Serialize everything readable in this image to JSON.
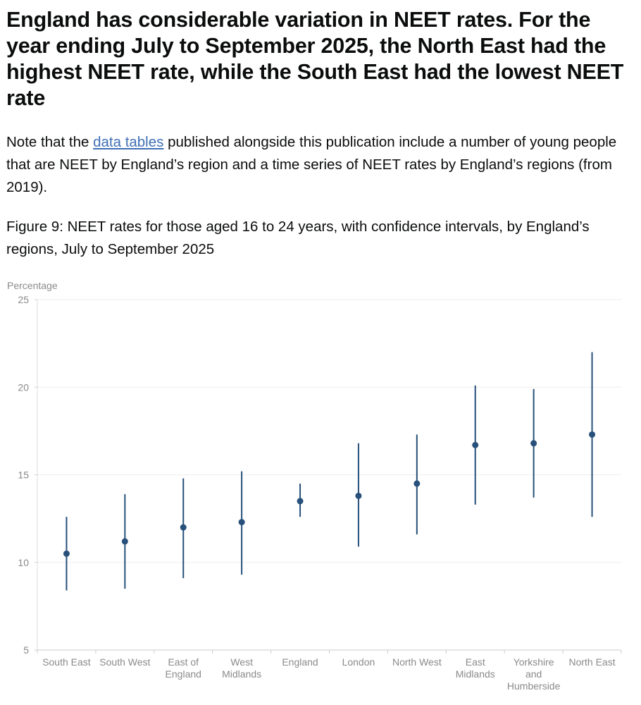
{
  "heading": "England has considerable variation in NEET rates. For the year ending July to September 2025, the North East had the highest NEET rate, while the South East had the lowest NEET rate",
  "note": {
    "before": "Note that the ",
    "link": "data tables",
    "after": " published alongside this publication include a number of young people that are NEET by England’s region and a time series of NEET rates by England’s regions (from 2019)."
  },
  "figure_caption": "Figure 9: NEET rates for those aged 16 to 24 years, with confidence intervals, by England’s regions, July to September 2025",
  "chart_data": {
    "type": "scatter",
    "subtype": "point-with-confidence-intervals",
    "title": "Figure 9: NEET rates for those aged 16 to 24 years, with confidence intervals, by England’s regions, July to September 2025",
    "ylabel": "Percentage",
    "xlabel": "",
    "ylim": [
      5,
      25
    ],
    "yticks": [
      "5",
      "10",
      "15",
      "20",
      "25"
    ],
    "grid": true,
    "color": "#27507a",
    "categories": [
      [
        "South East"
      ],
      [
        "South West"
      ],
      [
        "East of",
        "England"
      ],
      [
        "West",
        "Midlands"
      ],
      [
        "England"
      ],
      [
        "London"
      ],
      [
        "North West"
      ],
      [
        "East",
        "Midlands"
      ],
      [
        "Yorkshire",
        "and",
        "Humberside"
      ],
      [
        "North East"
      ]
    ],
    "values": [
      10.5,
      11.2,
      12.0,
      12.3,
      13.5,
      13.8,
      14.5,
      16.7,
      16.8,
      17.3
    ],
    "lower": [
      8.4,
      8.5,
      9.1,
      9.3,
      12.6,
      10.9,
      11.6,
      13.3,
      13.7,
      12.6
    ],
    "upper": [
      12.6,
      13.9,
      14.8,
      15.2,
      14.5,
      16.8,
      17.3,
      20.1,
      19.9,
      22.0
    ]
  }
}
